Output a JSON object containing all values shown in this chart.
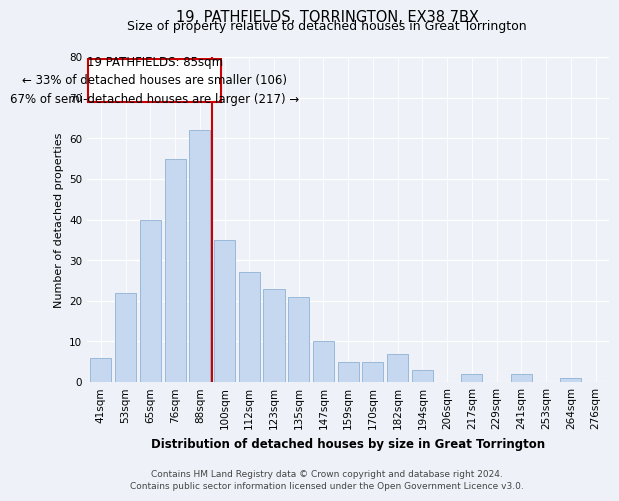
{
  "title": "19, PATHFIELDS, TORRINGTON, EX38 7BX",
  "subtitle": "Size of property relative to detached houses in Great Torrington",
  "xlabel": "Distribution of detached houses by size in Great Torrington",
  "ylabel": "Number of detached properties",
  "categories": [
    "41sqm",
    "53sqm",
    "65sqm",
    "76sqm",
    "88sqm",
    "100sqm",
    "112sqm",
    "123sqm",
    "135sqm",
    "147sqm",
    "159sqm",
    "170sqm",
    "182sqm",
    "194sqm",
    "206sqm",
    "217sqm",
    "229sqm",
    "241sqm",
    "253sqm",
    "264sqm",
    "276sqm"
  ],
  "values": [
    6,
    22,
    40,
    55,
    62,
    35,
    27,
    23,
    21,
    10,
    5,
    5,
    7,
    3,
    0,
    2,
    0,
    2,
    0,
    1,
    0
  ],
  "bar_color": "#c5d8f0",
  "bar_edge_color": "#9ab8d8",
  "vline_color": "#cc0000",
  "annotation_line1": "19 PATHFIELDS: 85sqm",
  "annotation_line2": "← 33% of detached houses are smaller (106)",
  "annotation_line3": "67% of semi-detached houses are larger (217) →",
  "annotation_box_color": "#ffffff",
  "annotation_box_edge_color": "#cc0000",
  "ylim": [
    0,
    80
  ],
  "yticks": [
    0,
    10,
    20,
    30,
    40,
    50,
    60,
    70,
    80
  ],
  "footer_line1": "Contains HM Land Registry data © Crown copyright and database right 2024.",
  "footer_line2": "Contains public sector information licensed under the Open Government Licence v3.0.",
  "bg_color": "#eef2f8",
  "plot_bg_color": "#eef2f8",
  "title_fontsize": 10.5,
  "subtitle_fontsize": 9,
  "xlabel_fontsize": 8.5,
  "ylabel_fontsize": 8,
  "tick_fontsize": 7.5,
  "footer_fontsize": 6.5,
  "annotation_fontsize": 8.5
}
